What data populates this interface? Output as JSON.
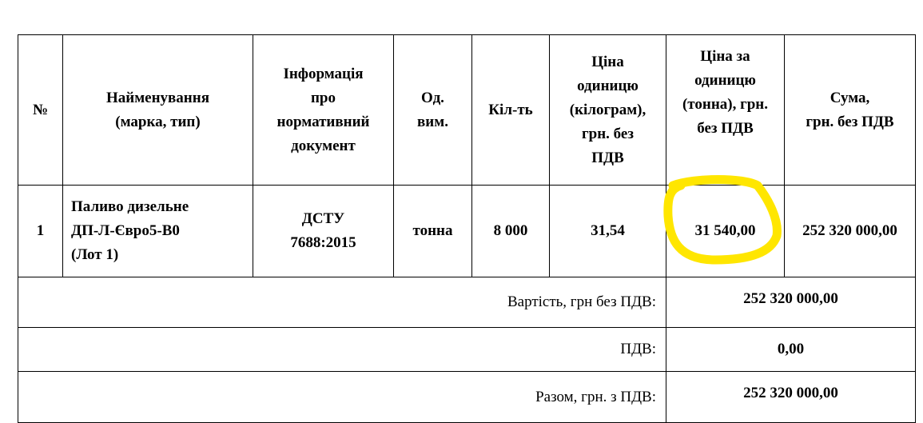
{
  "headers": {
    "no": "№",
    "name": [
      "Найменування",
      "(марка, тип)"
    ],
    "doc": [
      "Інформація",
      "про",
      "нормативний",
      "документ"
    ],
    "unit": [
      "Од.",
      "вим."
    ],
    "qty": "Кіл-ть",
    "price_kg": [
      "Ціна",
      "одиницю",
      "(кілограм),",
      "грн. без",
      "ПДВ"
    ],
    "price_t": [
      "Ціна за",
      "одиницю",
      "(тонна), грн.",
      "без ПДВ"
    ],
    "sum": [
      "Сума,",
      "грн. без ПДВ"
    ]
  },
  "row": {
    "no": "1",
    "name": [
      "Паливо дизельне",
      "ДП-Л-Євро5-В0",
      "(Лот 1)"
    ],
    "doc": [
      "ДСТУ",
      "7688:2015"
    ],
    "unit": "тонна",
    "qty": "8 000",
    "price_kg": "31,54",
    "price_t": "31 540,00",
    "sum": "252 320 000,00"
  },
  "summary": [
    {
      "label": "Вартість, грн без ПДВ:",
      "value": "252 320 000,00"
    },
    {
      "label": "ПДВ:",
      "value": "0,00"
    },
    {
      "label": "Разом, грн. з ПДВ:",
      "value": "252 320 000,00"
    }
  ],
  "highlight_color": "#ffe600"
}
